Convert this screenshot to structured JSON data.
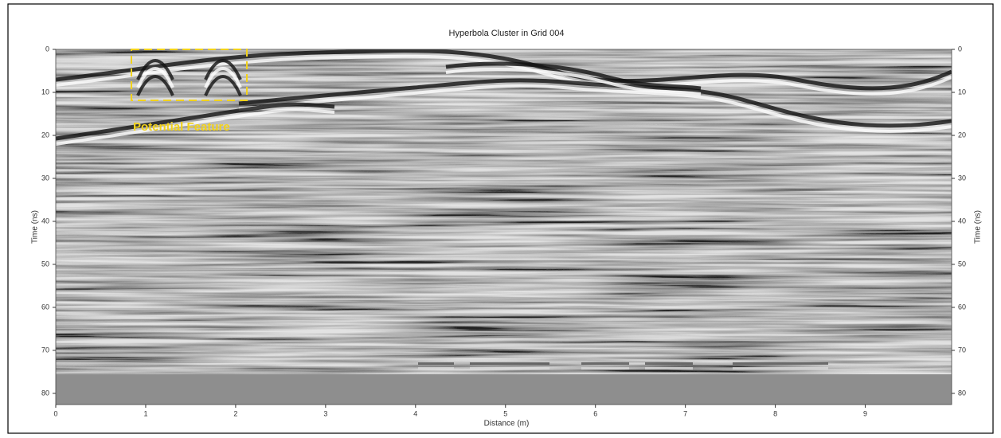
{
  "chart_data": {
    "type": "radargram",
    "title": "Hyperbola Cluster in Grid 004",
    "x_label": "Distance (m)",
    "y_label": "Time (ns)",
    "annotation": "Potential Feature",
    "annotation_color": "#f2d21b",
    "xlim": [
      0,
      9.96
    ],
    "xticks": [
      0,
      1,
      2,
      3,
      4,
      5,
      6,
      7,
      8,
      9
    ],
    "ylim": [
      0,
      82.6
    ],
    "yticks": [
      0,
      10,
      20,
      30,
      40,
      50,
      60,
      70,
      80
    ],
    "y_inverted": true,
    "right_axis": true
  }
}
